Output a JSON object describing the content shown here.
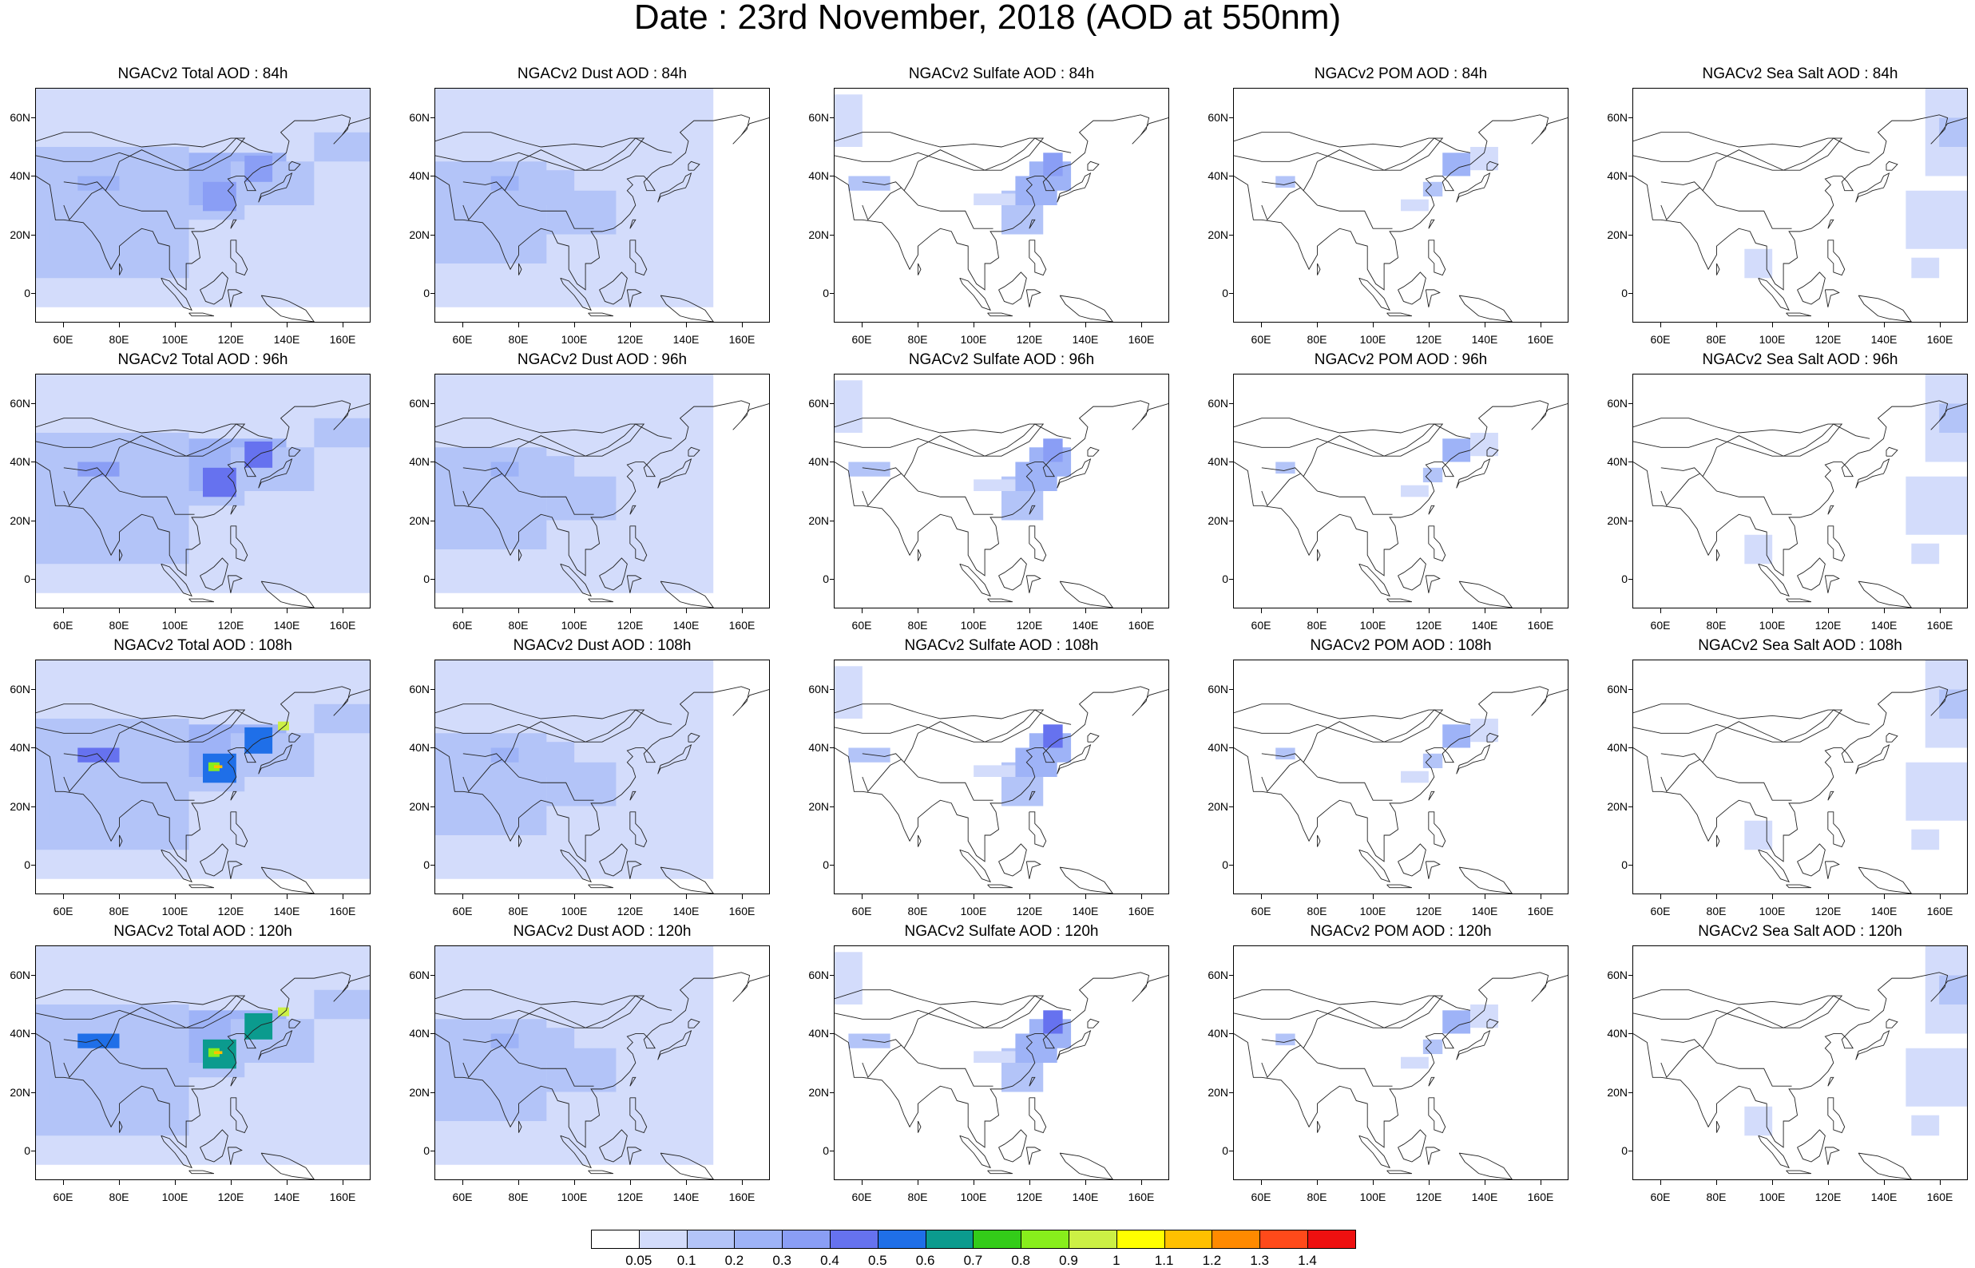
{
  "title": "Date : 23rd November, 2018 (AOD at 550nm)",
  "lat_ticks": [
    "60N",
    "40N",
    "20N",
    "0"
  ],
  "lon_ticks": [
    "60E",
    "80E",
    "100E",
    "120E",
    "140E",
    "160E"
  ],
  "panels": [
    {
      "title": "NGACv2 Total AOD : 84h",
      "species": "total",
      "hour": 84
    },
    {
      "title": "NGACv2 Dust AOD : 84h",
      "species": "dust",
      "hour": 84
    },
    {
      "title": "NGACv2 Sulfate AOD : 84h",
      "species": "sulfate",
      "hour": 84
    },
    {
      "title": "NGACv2 POM AOD : 84h",
      "species": "pom",
      "hour": 84
    },
    {
      "title": "NGACv2 Sea Salt AOD : 84h",
      "species": "seasalt",
      "hour": 84
    },
    {
      "title": "NGACv2 Total AOD : 96h",
      "species": "total",
      "hour": 96
    },
    {
      "title": "NGACv2 Dust AOD : 96h",
      "species": "dust",
      "hour": 96
    },
    {
      "title": "NGACv2 Sulfate AOD : 96h",
      "species": "sulfate",
      "hour": 96
    },
    {
      "title": "NGACv2 POM AOD : 96h",
      "species": "pom",
      "hour": 96
    },
    {
      "title": "NGACv2 Sea Salt AOD : 96h",
      "species": "seasalt",
      "hour": 96
    },
    {
      "title": "NGACv2 Total AOD : 108h",
      "species": "total",
      "hour": 108
    },
    {
      "title": "NGACv2 Dust AOD : 108h",
      "species": "dust",
      "hour": 108
    },
    {
      "title": "NGACv2 Sulfate AOD : 108h",
      "species": "sulfate",
      "hour": 108
    },
    {
      "title": "NGACv2 POM AOD : 108h",
      "species": "pom",
      "hour": 108
    },
    {
      "title": "NGACv2 Sea Salt AOD : 108h",
      "species": "seasalt",
      "hour": 108
    },
    {
      "title": "NGACv2 Total AOD : 120h",
      "species": "total",
      "hour": 120
    },
    {
      "title": "NGACv2 Dust AOD : 120h",
      "species": "dust",
      "hour": 120
    },
    {
      "title": "NGACv2 Sulfate AOD : 120h",
      "species": "sulfate",
      "hour": 120
    },
    {
      "title": "NGACv2 POM AOD : 120h",
      "species": "pom",
      "hour": 120
    },
    {
      "title": "NGACv2 Sea Salt  AOD : 120h",
      "species": "seasalt",
      "hour": 120
    }
  ],
  "colorbar": {
    "labels": [
      "0.05",
      "0.1",
      "0.2",
      "0.3",
      "0.4",
      "0.5",
      "0.6",
      "0.7",
      "0.8",
      "0.9",
      "1",
      "1.1",
      "1.2",
      "1.3",
      "1.4"
    ],
    "colors": [
      "#ffffff",
      "#d3dcfb",
      "#b3c4f8",
      "#9eb3f7",
      "#8a9ef5",
      "#6672ef",
      "#1f6fe8",
      "#0b9b8e",
      "#33cc19",
      "#88ee1c",
      "#ccf045",
      "#ffff00",
      "#ffc000",
      "#ff8a00",
      "#ff4a1a",
      "#ee1010"
    ]
  }
}
